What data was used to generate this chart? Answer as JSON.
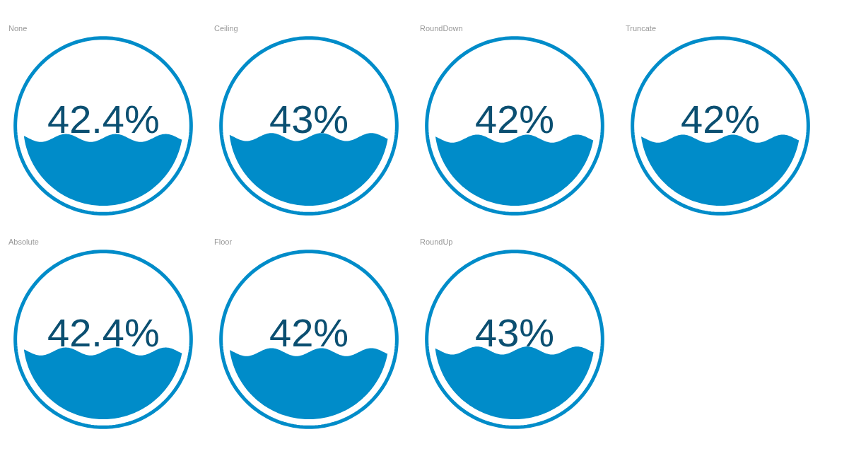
{
  "chart_data": [
    {
      "type": "other",
      "title": "None",
      "values": [
        42.4
      ],
      "value_labels": [
        "42.4%"
      ],
      "color": "#008cc9"
    },
    {
      "type": "other",
      "title": "Ceiling",
      "values": [
        43
      ],
      "value_labels": [
        "43%"
      ],
      "color": "#008cc9"
    },
    {
      "type": "other",
      "title": "RoundDown",
      "values": [
        42
      ],
      "value_labels": [
        "42%"
      ],
      "color": "#008cc9"
    },
    {
      "type": "other",
      "title": "Truncate",
      "values": [
        42
      ],
      "value_labels": [
        "42%"
      ],
      "color": "#008cc9"
    },
    {
      "type": "other",
      "title": "Absolute",
      "values": [
        42.4
      ],
      "value_labels": [
        "42.4%"
      ],
      "color": "#008cc9"
    },
    {
      "type": "other",
      "title": "Floor",
      "values": [
        42
      ],
      "value_labels": [
        "42%"
      ],
      "color": "#008cc9"
    },
    {
      "type": "other",
      "title": "RoundUp",
      "values": [
        43
      ],
      "value_labels": [
        "43%"
      ],
      "color": "#008cc9"
    }
  ]
}
